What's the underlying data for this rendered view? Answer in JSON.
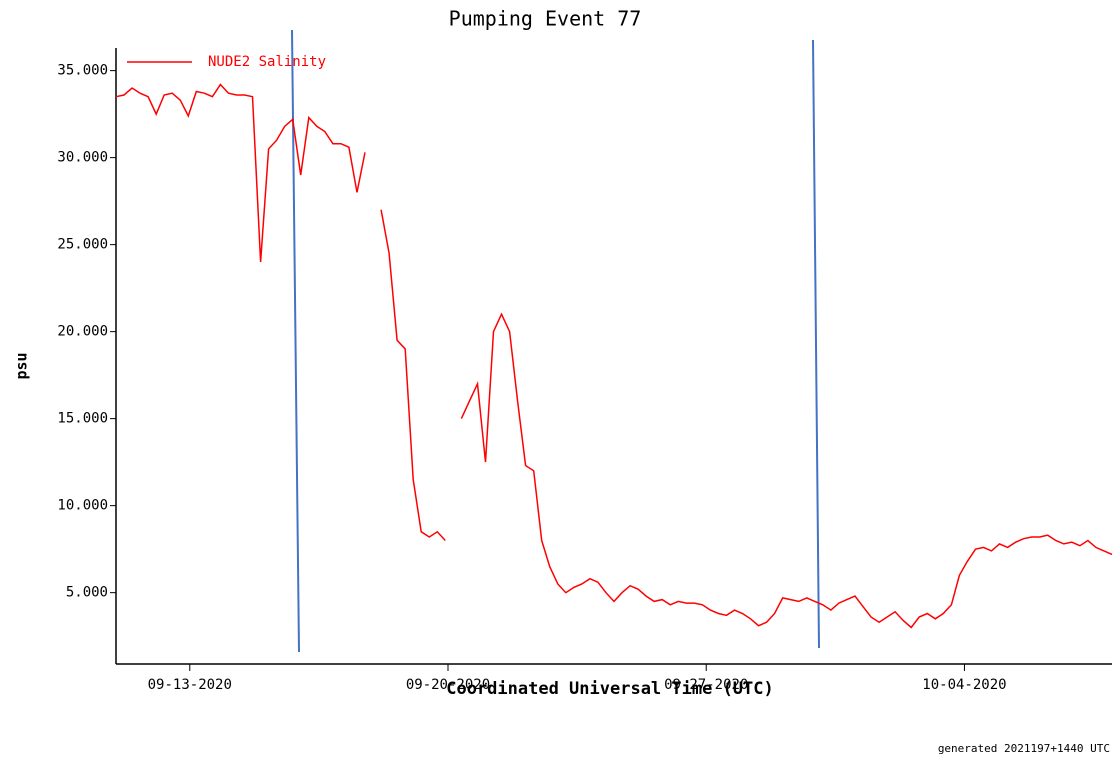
{
  "chart_data": {
    "type": "line",
    "title": "Pumping Event 77",
    "x_label": "Coordinated Universal Time (UTC)",
    "y_label": "psu",
    "footer": "generated 2021197+1440 UTC",
    "legend": "upper left",
    "grid": false,
    "xlim": [
      "2020-09-11",
      "2020-10-08"
    ],
    "xticks": [
      {
        "value": "2020-09-13",
        "label": "09-13-2020"
      },
      {
        "value": "2020-09-20",
        "label": "09-20-2020"
      },
      {
        "value": "2020-09-27",
        "label": "09-27-2020"
      },
      {
        "value": "2020-10-04",
        "label": "10-04-2020"
      }
    ],
    "ylim": [
      0.9,
      36.3
    ],
    "yticks": [
      {
        "value": 5,
        "label": "5.000"
      },
      {
        "value": 10,
        "label": "10.000"
      },
      {
        "value": 15,
        "label": "15.000"
      },
      {
        "value": 20,
        "label": "20.000"
      },
      {
        "value": 25,
        "label": "25.000"
      },
      {
        "value": 30,
        "label": "30.000"
      },
      {
        "value": 35,
        "label": "35.000"
      }
    ],
    "series": [
      {
        "name": "NUDE2 Salinity",
        "color": "#ff0000",
        "values": [
          33.5,
          33.6,
          34.0,
          33.7,
          33.5,
          32.5,
          33.6,
          33.7,
          33.3,
          32.4,
          33.8,
          33.7,
          33.5,
          34.2,
          33.7,
          33.6,
          33.6,
          33.5,
          24,
          30.5,
          31.0,
          31.8,
          32.2,
          29,
          32.3,
          31.8,
          31.5,
          30.8,
          30.8,
          30.6,
          28,
          30.3,
          null,
          27,
          24.5,
          19.5,
          19,
          11.5,
          8.5,
          8.2,
          8.5,
          8.0,
          null,
          15,
          16,
          17,
          12.5,
          20,
          21,
          20,
          16,
          12.3,
          12.0,
          8,
          6.5,
          5.5,
          5.0,
          5.3,
          5.5,
          5.8,
          5.6,
          5.0,
          4.5,
          5.0,
          5.4,
          5.2,
          4.8,
          4.5,
          4.6,
          4.3,
          4.5,
          4.4,
          4.4,
          4.3,
          4.0,
          3.8,
          3.7,
          4.0,
          3.8,
          3.5,
          3.1,
          3.3,
          3.8,
          4.7,
          4.6,
          4.5,
          4.7,
          4.5,
          4.3,
          4.0,
          4.4,
          4.6,
          4.8,
          4.2,
          3.6,
          3.3,
          3.6,
          3.9,
          3.4,
          3.0,
          3.6,
          3.8,
          3.5,
          3.8,
          4.3,
          6.0,
          6.8,
          7.5,
          7.6,
          7.4,
          7.8,
          7.6,
          7.9,
          8.1,
          8.2,
          8.2,
          8.3,
          8.0,
          7.8,
          7.9,
          7.7,
          8.0,
          7.6,
          7.4,
          7.2
        ]
      }
    ]
  }
}
